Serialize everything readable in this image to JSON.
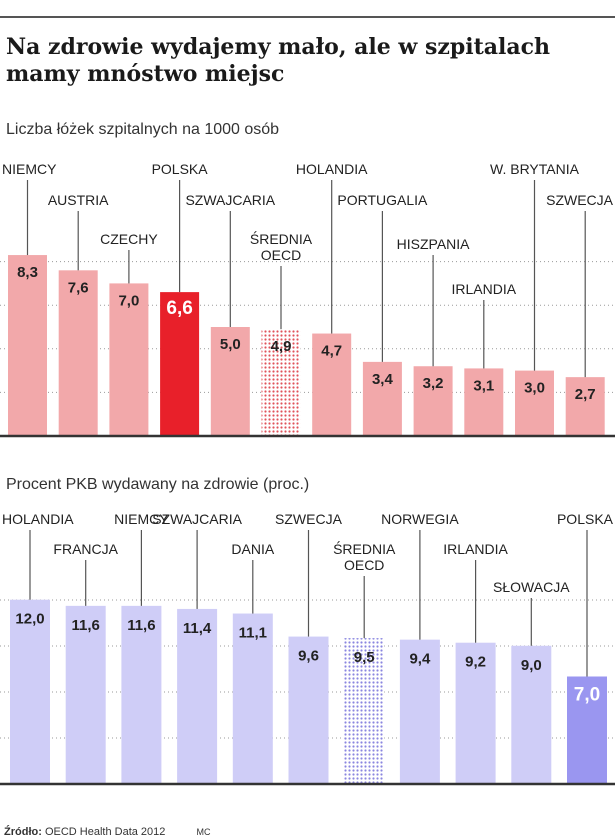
{
  "headline": "Na zdrowie wydajemy mało, ale w szpitalach mamy mnóstwo miejsc",
  "source_label": "Źródło:",
  "source_text": "OECD Health Data 2012",
  "author_initials": "MC",
  "colors": {
    "beds_bar": "#f2a8aa",
    "beds_highlight": "#e8202a",
    "beds_avg_dots": "#e0535a",
    "gdp_bar": "#cfcdf7",
    "gdp_highlight": "#9a96f0",
    "gdp_avg_dots": "#8a86e0"
  },
  "chart_data": [
    {
      "type": "bar",
      "subtitle": "Liczba łóżek szpitalnych na 1000 osób",
      "categories": [
        "NIEMCY",
        "AUSTRIA",
        "CZECHY",
        "POLSKA",
        "SZWAJCARIA",
        "ŚREDNIA OECD",
        "HOLANDIA",
        "PORTUGALIA",
        "HISZPANIA",
        "IRLANDIA",
        "W. BRYTANIA",
        "SZWECJA"
      ],
      "values": [
        8.3,
        7.6,
        7.0,
        6.6,
        5.0,
        4.9,
        4.7,
        3.4,
        3.2,
        3.1,
        3.0,
        2.7
      ],
      "value_labels": [
        "8,3",
        "7,6",
        "7,0",
        "6,6",
        "5,0",
        "4,9",
        "4,7",
        "3,4",
        "3,2",
        "3,1",
        "3,0",
        "2,7"
      ],
      "highlight": "POLSKA",
      "average": "ŚREDNIA OECD",
      "ylim": [
        0,
        10
      ],
      "grid": true
    },
    {
      "type": "bar",
      "subtitle": "Procent PKB wydawany na zdrowie (proc.)",
      "categories": [
        "HOLANDIA",
        "FRANCJA",
        "NIEMCY",
        "SZWAJCARIA",
        "DANIA",
        "SZWECJA",
        "ŚREDNIA OECD",
        "NORWEGIA",
        "IRLANDIA",
        "SŁOWACJA",
        "POLSKA"
      ],
      "values": [
        12.0,
        11.6,
        11.6,
        11.4,
        11.1,
        9.6,
        9.5,
        9.4,
        9.2,
        9.0,
        7.0
      ],
      "value_labels": [
        "12,0",
        "11,6",
        "11,6",
        "11,4",
        "11,1",
        "9,6",
        "9,5",
        "9,4",
        "9,2",
        "9,0",
        "7,0"
      ],
      "highlight": "POLSKA",
      "average": "ŚREDNIA OECD",
      "ylim": [
        0,
        14
      ],
      "grid": true
    }
  ]
}
